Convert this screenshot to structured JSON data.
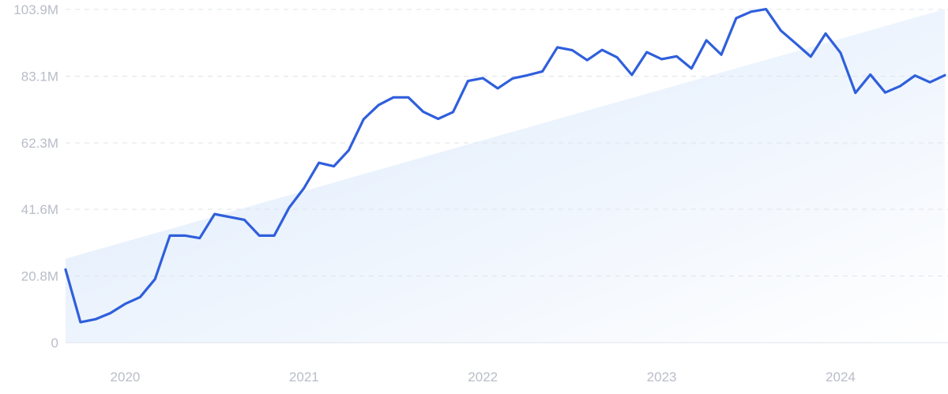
{
  "chart_data": {
    "type": "line",
    "title": "",
    "xlabel": "",
    "ylabel": "",
    "ylim": [
      0,
      103.9
    ],
    "y_unit": "M",
    "y_ticks": [
      {
        "value": 0,
        "label": "0"
      },
      {
        "value": 20.8,
        "label": "20.8M"
      },
      {
        "value": 41.6,
        "label": "41.6M"
      },
      {
        "value": 62.3,
        "label": "62.3M"
      },
      {
        "value": 83.1,
        "label": "83.1M"
      },
      {
        "value": 103.9,
        "label": "103.9M"
      }
    ],
    "x_range": [
      "2019-09",
      "2024-08"
    ],
    "x_ticks": [
      {
        "date": "2020-01",
        "label": "2020"
      },
      {
        "date": "2021-01",
        "label": "2021"
      },
      {
        "date": "2022-01",
        "label": "2022"
      },
      {
        "date": "2023-01",
        "label": "2023"
      },
      {
        "date": "2024-01",
        "label": "2024"
      }
    ],
    "grid": true,
    "legend": "none",
    "series": [
      {
        "x": [
          "2019-09",
          "2019-10",
          "2019-11",
          "2019-12",
          "2020-01",
          "2020-02",
          "2020-03",
          "2020-04",
          "2020-05",
          "2020-06",
          "2020-07",
          "2020-08",
          "2020-09",
          "2020-10",
          "2020-11",
          "2020-12",
          "2021-01",
          "2021-02",
          "2021-03",
          "2021-04",
          "2021-05",
          "2021-06",
          "2021-07",
          "2021-08",
          "2021-09",
          "2021-10",
          "2021-11",
          "2021-12",
          "2022-01",
          "2022-02",
          "2022-03",
          "2022-04",
          "2022-05",
          "2022-06",
          "2022-07",
          "2022-08",
          "2022-09",
          "2022-10",
          "2022-11",
          "2022-12",
          "2023-01",
          "2023-02",
          "2023-03",
          "2023-04",
          "2023-05",
          "2023-06",
          "2023-07",
          "2023-08",
          "2023-09",
          "2023-10",
          "2023-11",
          "2023-12",
          "2024-01",
          "2024-02",
          "2024-03",
          "2024-04",
          "2024-05",
          "2024-06",
          "2024-07",
          "2024-08"
        ],
        "values": [
          22.8,
          6.4,
          7.3,
          9.2,
          12.1,
          14.2,
          19.8,
          33.4,
          33.4,
          32.6,
          40.1,
          39.2,
          38.3,
          33.4,
          33.4,
          42.1,
          48.2,
          56.1,
          55.0,
          60.0,
          69.7,
          74.1,
          76.5,
          76.5,
          72.0,
          69.8,
          71.9,
          81.6,
          82.5,
          79.3,
          82.4,
          83.4,
          84.6,
          92.1,
          91.2,
          88.1,
          91.3,
          89.0,
          83.5,
          90.6,
          88.4,
          89.3,
          85.5,
          94.3,
          89.8,
          101.2,
          103.2,
          104.0,
          97.3,
          93.3,
          89.2,
          96.4,
          90.4,
          77.9,
          83.6,
          78.0,
          80.0,
          83.3,
          81.2,
          83.4
        ]
      }
    ],
    "trend_band": {
      "x": [
        "2019-09",
        "2024-08"
      ],
      "top_values": [
        26.2,
        104.0
      ]
    },
    "colors": {
      "line": "#2f5fdc",
      "band_top": "#dbe9fb",
      "band_bottom": "#ffffff"
    }
  }
}
